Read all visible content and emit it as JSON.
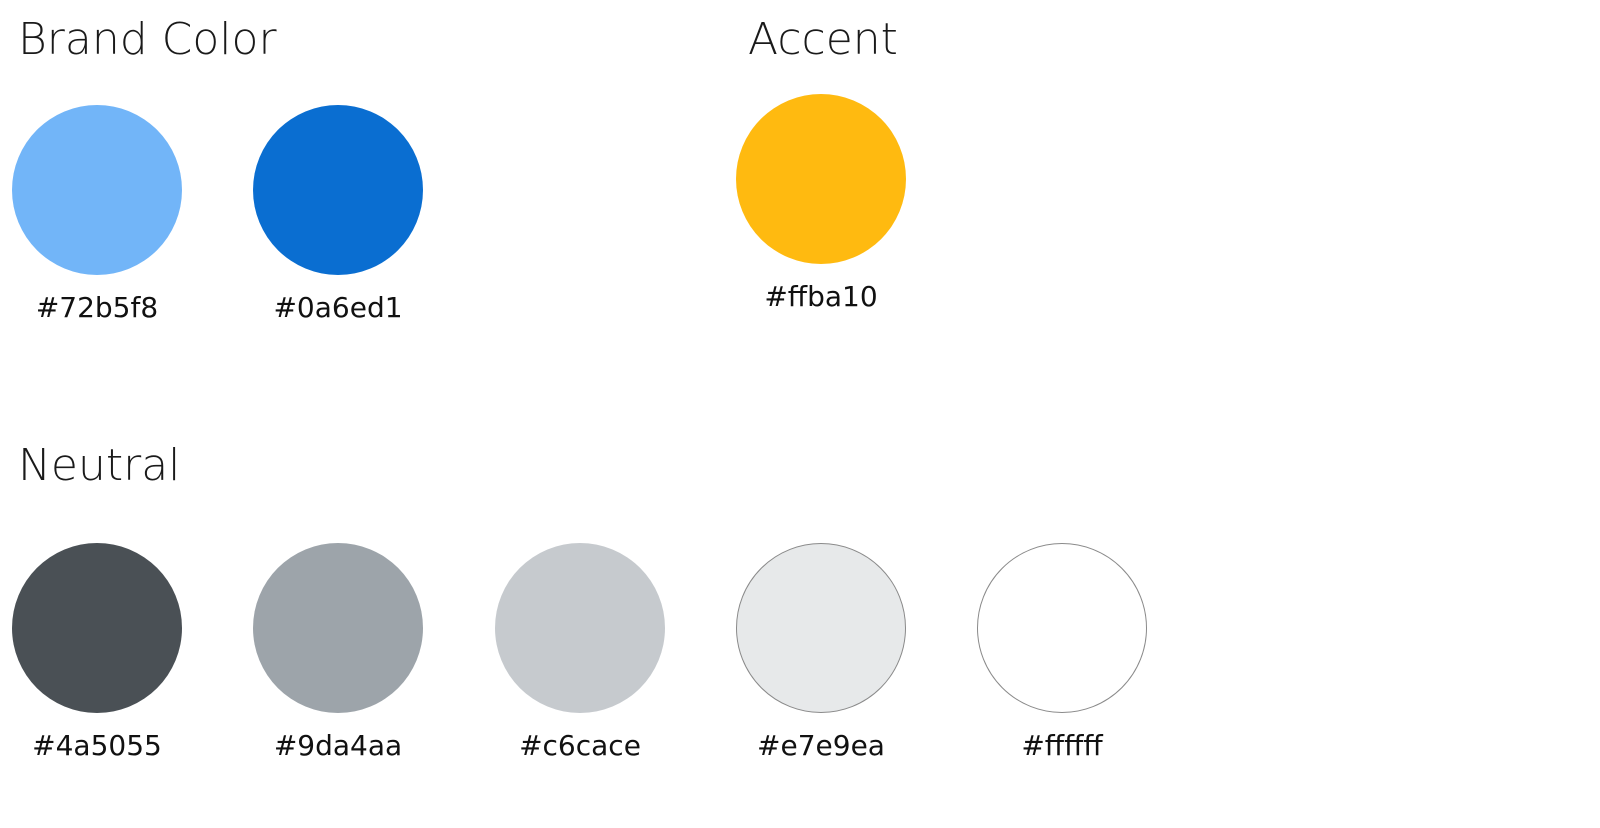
{
  "brand": {
    "title": "Brand Color",
    "swatches": [
      {
        "hex": "#72b5f8",
        "color": "#72b5f8"
      },
      {
        "hex": "#0a6ed1",
        "color": "#0a6ed1"
      }
    ]
  },
  "accent": {
    "title": "Accent",
    "swatches": [
      {
        "hex": "#ffba10",
        "color": "#ffba10"
      }
    ]
  },
  "neutral": {
    "title": "Neutral",
    "swatches": [
      {
        "hex": "#4a5055",
        "color": "#4a5055"
      },
      {
        "hex": "#9da4aa",
        "color": "#9da4aa"
      },
      {
        "hex": "#c6cace",
        "color": "#c6cace"
      },
      {
        "hex": "#e7e9ea",
        "color": "#e7e9ea"
      },
      {
        "hex": "#ffffff",
        "color": "#ffffff"
      }
    ]
  }
}
